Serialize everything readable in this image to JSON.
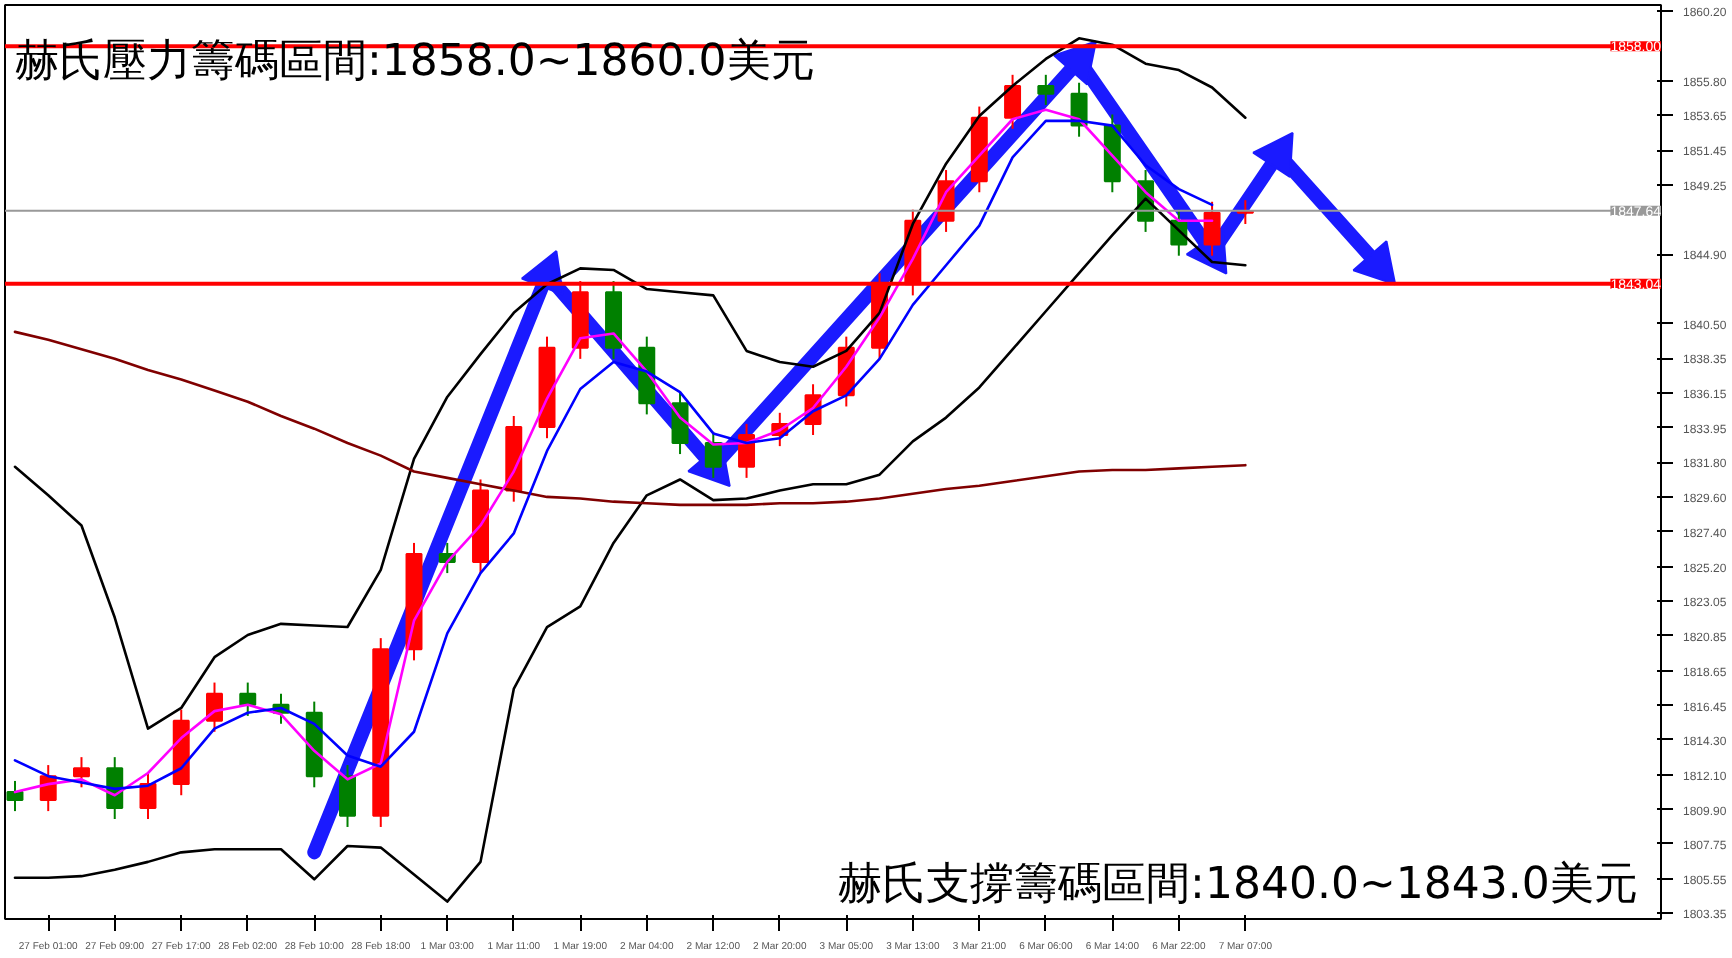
{
  "chart_data": {
    "type": "candlestick",
    "annotations": [
      "赫氏壓力籌碼區間:1858.0~1860.0美元",
      "赫氏支撐籌碼區間:1840.0~1843.0美元"
    ],
    "categories": [
      null,
      "27 Feb 01:00",
      null,
      "27 Feb 09:00",
      null,
      "27 Feb 17:00",
      null,
      "28 Feb 02:00",
      null,
      "28 Feb 10:00",
      null,
      "28 Feb 18:00",
      null,
      "1 Mar 03:00",
      null,
      "1 Mar 11:00",
      null,
      "1 Mar 19:00",
      null,
      "2 Mar 04:00",
      null,
      "2 Mar 12:00",
      null,
      "2 Mar 20:00",
      null,
      "3 Mar 05:00",
      null,
      "3 Mar 13:00",
      null,
      "3 Mar 21:00",
      null,
      "6 Mar 06:00",
      null,
      "6 Mar 14:00",
      null,
      "6 Mar 22:00",
      null,
      "7 Mar 07:00",
      null,
      null,
      null,
      null,
      null,
      null,
      null,
      null,
      null,
      null,
      null,
      null
    ],
    "ohlc": [
      [
        1811,
        1811.7,
        1809.8,
        1810.5
      ],
      [
        1810.5,
        1812.7,
        1809.8,
        1812
      ],
      [
        1812,
        1813.2,
        1811.3,
        1812.5
      ],
      [
        1812.5,
        1813.2,
        1809.3,
        1810
      ],
      [
        1810,
        1812.2,
        1809.3,
        1811.5
      ],
      [
        1811.5,
        1816.2,
        1810.8,
        1815.5
      ],
      [
        1815.5,
        1817.9,
        1814.8,
        1817.2
      ],
      [
        1817.2,
        1817.9,
        1815.8,
        1816.5
      ],
      [
        1816.5,
        1817.2,
        1815.3,
        1816
      ],
      [
        1816,
        1816.7,
        1811.3,
        1812
      ],
      [
        1812,
        1812.7,
        1808.8,
        1809.5
      ],
      [
        1809.5,
        1820.7,
        1808.8,
        1820
      ],
      [
        1820,
        1826.7,
        1819.3,
        1826
      ],
      [
        1826,
        1826.7,
        1824.8,
        1825.5
      ],
      [
        1825.5,
        1830.7,
        1824.8,
        1830
      ],
      [
        1830,
        1834.7,
        1829.3,
        1834
      ],
      [
        1834,
        1839.7,
        1833.3,
        1839
      ],
      [
        1839,
        1843.2,
        1838.3,
        1842.5
      ],
      [
        1842.5,
        1843.2,
        1838.3,
        1839
      ],
      [
        1839,
        1839.7,
        1834.8,
        1835.5
      ],
      [
        1835.5,
        1836.2,
        1832.3,
        1833
      ],
      [
        1833,
        1833.7,
        1830.8,
        1831.5
      ],
      [
        1831.5,
        1834.2,
        1830.8,
        1833.5
      ],
      [
        1833.5,
        1834.9,
        1832.8,
        1834.2
      ],
      [
        1834.2,
        1836.7,
        1833.5,
        1836
      ],
      [
        1836,
        1839.7,
        1835.3,
        1839
      ],
      [
        1839,
        1843.7,
        1838.3,
        1843
      ],
      [
        1843,
        1847.7,
        1842.3,
        1847
      ],
      [
        1847,
        1850.2,
        1846.3,
        1849.5
      ],
      [
        1849.5,
        1854.2,
        1848.8,
        1853.5
      ],
      [
        1853.5,
        1856.2,
        1852.8,
        1855.5
      ],
      [
        1855.5,
        1856.2,
        1854.3,
        1855
      ],
      [
        1855,
        1855.7,
        1852.3,
        1853
      ],
      [
        1853,
        1853.7,
        1848.8,
        1849.5
      ],
      [
        1849.5,
        1850.2,
        1846.3,
        1847
      ],
      [
        1847,
        1847.7,
        1844.8,
        1845.5
      ],
      [
        1845.5,
        1848.2,
        1844.8,
        1847.5
      ],
      [
        1847.5,
        1848.3,
        1846.8,
        1847.6
      ],
      null,
      null,
      null,
      null,
      null,
      null,
      null,
      null,
      null,
      null,
      null,
      null
    ],
    "colors": [
      "#008000",
      "#ff0000",
      "#ff0000",
      "#008000",
      "#ff0000",
      "#ff0000",
      "#ff0000",
      "#008000",
      "#008000",
      "#008000",
      "#008000",
      "#ff0000",
      "#ff0000",
      "#008000",
      "#ff0000",
      "#ff0000",
      "#ff0000",
      "#ff0000",
      "#008000",
      "#008000",
      "#008000",
      "#008000",
      "#ff0000",
      "#ff0000",
      "#ff0000",
      "#ff0000",
      "#ff0000",
      "#ff0000",
      "#ff0000",
      "#ff0000",
      "#ff0000",
      "#008000",
      "#008000",
      "#008000",
      "#008000",
      "#008000",
      "#ff0000",
      "#ff0000",
      null,
      null,
      null,
      null,
      null,
      null,
      null,
      null,
      null,
      null,
      null,
      null
    ],
    "series": [
      {
        "type": "line",
        "color": "#000000",
        "values": [
          1831.5,
          1829.7,
          1827.8,
          1822,
          1815,
          1816.3,
          1819.5,
          1820.9,
          1821.6,
          1821.5,
          1821.4,
          1825,
          1832,
          1835.9,
          1838.6,
          1841.2,
          1843,
          1844,
          1843.9,
          1842.7,
          1842.5,
          1842.3,
          1838.8,
          1838.1,
          1837.8,
          1838.8,
          1841.2,
          1846.8,
          1850.6,
          1853.6,
          1855.5,
          1857.2,
          1858.5,
          1858.1,
          1856.9,
          1856.5,
          1855.4,
          1853.5,
          null,
          null,
          null,
          null,
          null,
          null,
          null,
          null,
          null,
          null,
          null,
          null
        ]
      },
      {
        "type": "line",
        "color": "#000000",
        "values": [
          1805.6,
          1805.6,
          1805.7,
          1806.1,
          1806.6,
          1807.2,
          1807.4,
          1807.4,
          1807.4,
          1805.5,
          1807.6,
          1807.5,
          1805.8,
          1804.1,
          1806.6,
          1817.5,
          1821.4,
          1822.7,
          1826.7,
          1829.7,
          1830.7,
          1829.4,
          1829.5,
          1830,
          1830.4,
          1830.4,
          1831,
          1833.1,
          1834.6,
          1836.5,
          1838.9,
          1841.3,
          1843.7,
          1846.1,
          1848.4,
          1846.4,
          1844.4,
          1844.2,
          null,
          null,
          null,
          null,
          null,
          null,
          null,
          null,
          null,
          null,
          null,
          null
        ]
      },
      {
        "type": "line",
        "color": "#800000",
        "values": [
          1840.0,
          1839.5,
          1838.9,
          1838.3,
          1837.6,
          1837,
          1836.3,
          1835.6,
          1834.7,
          1833.9,
          1833,
          1832.2,
          1831.2,
          1830.8,
          1830.4,
          1830,
          1829.6,
          1829.5,
          1829.3,
          1829.2,
          1829.1,
          1829.1,
          1829.1,
          1829.2,
          1829.2,
          1829.3,
          1829.5,
          1829.8,
          1830.1,
          1830.3,
          1830.6,
          1830.9,
          1831.2,
          1831.3,
          1831.3,
          1831.4,
          1831.5,
          1831.6,
          null,
          null,
          null,
          null,
          null,
          null,
          null,
          null,
          null,
          null,
          null,
          null
        ]
      },
      {
        "type": "line",
        "color": "#ff00ff",
        "values": [
          1811,
          1811.5,
          1811.8,
          1810.8,
          1812.2,
          1814.4,
          1816.1,
          1816.5,
          1815.9,
          1813.6,
          1811.8,
          1812.8,
          1821.8,
          1825.5,
          1827.8,
          1831.2,
          1835.8,
          1839.6,
          1839.9,
          1837.5,
          1834.6,
          1832.9,
          1833,
          1833.8,
          1835.2,
          1837.8,
          1840.9,
          1844.6,
          1848.8,
          1851.1,
          1853.4,
          1854,
          1853.4,
          1851.1,
          1848.8,
          1847,
          1847,
          null,
          null,
          null,
          null,
          null,
          null,
          null,
          null,
          null,
          null,
          null,
          null,
          null
        ]
      },
      {
        "type": "line",
        "color": "#0000ff",
        "values": [
          1813,
          1812,
          1811.6,
          1811.2,
          1811.4,
          1812.5,
          1815,
          1816,
          1816.3,
          1815.3,
          1813.3,
          1812.6,
          1814.8,
          1821,
          1824.8,
          1827.3,
          1832.5,
          1836.4,
          1838.1,
          1837.5,
          1836.2,
          1833.6,
          1833,
          1833.3,
          1835,
          1836,
          1838.3,
          1841.7,
          1844.2,
          1846.7,
          1851,
          1853.3,
          1853.3,
          1853,
          1850.5,
          1849,
          1848,
          null,
          null,
          null,
          null,
          null,
          null,
          null,
          null,
          null,
          null,
          null,
          null,
          null
        ]
      },
      {
        "type": "line",
        "color": "#1a1aff",
        "marker": "triangle",
        "values": [
          null,
          null,
          null,
          null,
          null,
          null,
          null,
          null,
          null,
          1807.2,
          null,
          null,
          null,
          null,
          null,
          null,
          1843.6,
          null,
          null,
          null,
          null,
          1831.5,
          null,
          null,
          null,
          null,
          null,
          null,
          null,
          null,
          null,
          null,
          1857.1,
          null,
          null,
          null,
          1845.0,
          null,
          1851.2,
          null,
          null,
          1844.2,
          null,
          null,
          null,
          null,
          null,
          null,
          null,
          null
        ]
      }
    ],
    "ref_lines": [
      {
        "axis": "y",
        "value": 1858.0,
        "label": "1858.00",
        "color": "#ff0000"
      },
      {
        "axis": "y",
        "value": 1843.04,
        "label": "1843.04",
        "color": "#ff0000"
      },
      {
        "axis": "y",
        "value": 1847.64,
        "label": "1847.64",
        "color": "#999999"
      }
    ],
    "ylim": [
      1803.0,
      1860.6
    ],
    "yticks": [
      {
        "value": 1860.2,
        "label": "1860.20"
      },
      {
        "value": 1855.8,
        "label": "1855.80"
      },
      {
        "value": 1853.65,
        "label": "1853.65"
      },
      {
        "value": 1851.45,
        "label": "1851.45"
      },
      {
        "value": 1849.25,
        "label": "1849.25"
      },
      {
        "value": 1844.9,
        "label": "1844.90"
      },
      {
        "value": 1840.5,
        "label": "1840.50"
      },
      {
        "value": 1838.35,
        "label": "1838.35"
      },
      {
        "value": 1836.15,
        "label": "1836.15"
      },
      {
        "value": 1833.95,
        "label": "1833.95"
      },
      {
        "value": 1831.8,
        "label": "1831.80"
      },
      {
        "value": 1829.6,
        "label": "1829.60"
      },
      {
        "value": 1827.4,
        "label": "1827.40"
      },
      {
        "value": 1825.2,
        "label": "1825.20"
      },
      {
        "value": 1823.05,
        "label": "1823.05"
      },
      {
        "value": 1820.85,
        "label": "1820.85"
      },
      {
        "value": 1818.65,
        "label": "1818.65"
      },
      {
        "value": 1816.45,
        "label": "1816.45"
      },
      {
        "value": 1814.3,
        "label": "1814.30"
      },
      {
        "value": 1812.1,
        "label": "1812.10"
      },
      {
        "value": 1809.9,
        "label": "1809.90"
      },
      {
        "value": 1807.75,
        "label": "1807.75"
      },
      {
        "value": 1805.55,
        "label": "1805.55"
      },
      {
        "value": 1803.35,
        "label": "1803.35"
      }
    ],
    "grid": false
  }
}
